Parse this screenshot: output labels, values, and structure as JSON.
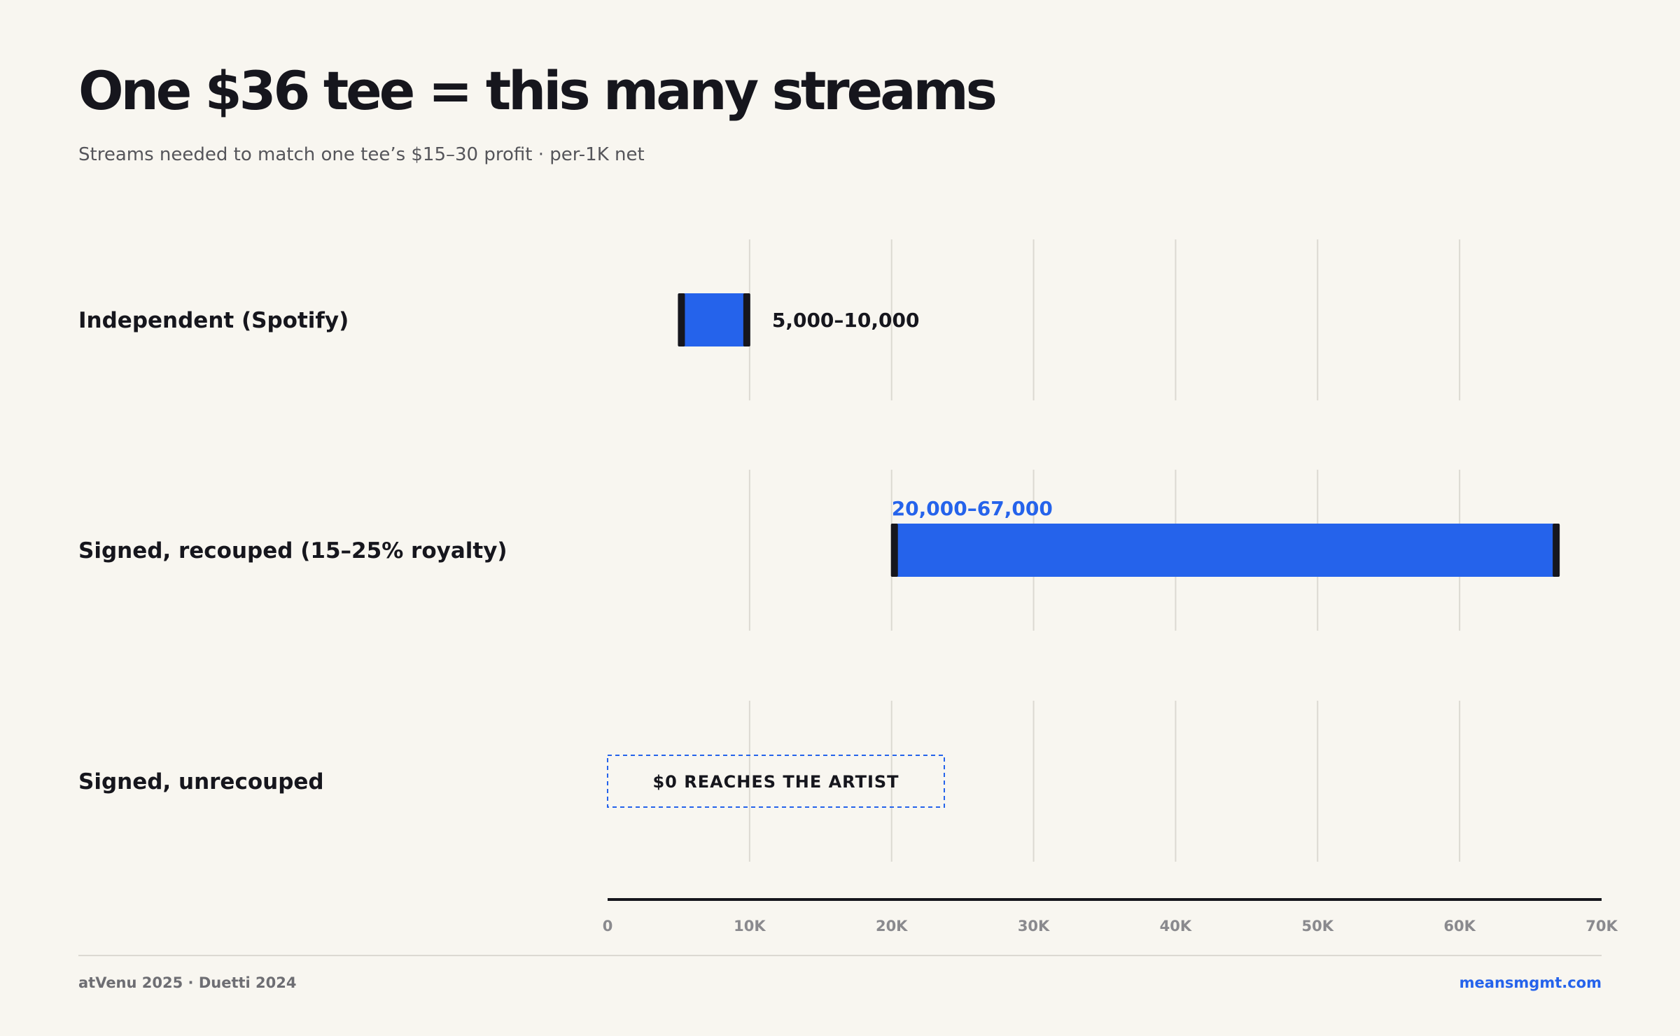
{
  "title": "One $36 tee = this many streams",
  "subtitle": "Streams needed to match one tee’s $15–30 profit · per-1K net",
  "chart_data": {
    "type": "range-bar",
    "orientation": "horizontal",
    "categories": [
      "Independent (Spotify)",
      "Signed, recouped (15–25% royalty)",
      "Signed, unrecouped"
    ],
    "ranges": [
      {
        "category": "Independent (Spotify)",
        "low": 5000,
        "high": 10000,
        "label": "5,000–10,000"
      },
      {
        "category": "Signed, recouped (15–25% royalty)",
        "low": 20000,
        "high": 67000,
        "label": "20,000–67,000"
      },
      {
        "category": "Signed, unrecouped",
        "low": null,
        "high": null,
        "label": "$0 REACHES THE ARTIST"
      }
    ],
    "xlim": [
      0,
      70000
    ],
    "xticks": [
      0,
      10000,
      20000,
      30000,
      40000,
      50000,
      60000,
      70000
    ],
    "xtick_labels": [
      "0",
      "10K",
      "20K",
      "30K",
      "40K",
      "50K",
      "60K",
      "70K"
    ],
    "grid": true,
    "colors": {
      "bar": "#2563eb",
      "cap": "#16161d",
      "highlight_label": "#2563eb",
      "gridline": "#dcd9d2",
      "axis": "#16161d"
    }
  },
  "footer": {
    "source": "atVenu 2025 · Duetti 2024",
    "link": "meansmgmt.com"
  }
}
